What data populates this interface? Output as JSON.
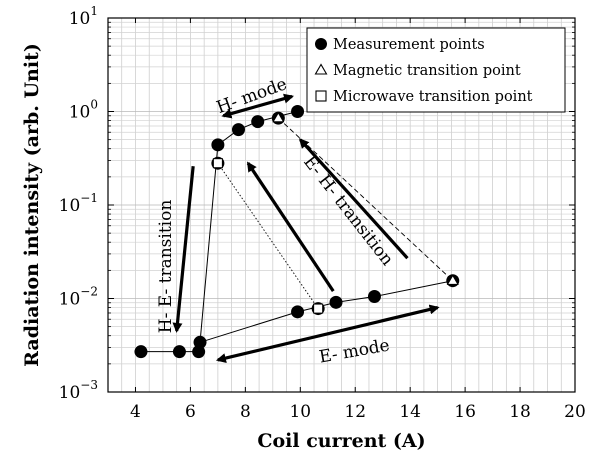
{
  "chart_data": {
    "type": "scatter",
    "xlabel": "Coil current (A)",
    "ylabel": "Radiation intensity (arb. Unit)",
    "xlim": [
      3,
      20
    ],
    "ylim": [
      0.001,
      10
    ],
    "yscale": "log",
    "x_ticks": [
      4,
      6,
      8,
      10,
      12,
      14,
      16,
      18,
      20
    ],
    "y_ticks": [
      {
        "value": 0.001,
        "base": "10",
        "exp": "−3"
      },
      {
        "value": 0.01,
        "base": "10",
        "exp": "−2"
      },
      {
        "value": 0.1,
        "base": "10",
        "exp": "−1"
      },
      {
        "value": 1,
        "base": "10",
        "exp": "0"
      },
      {
        "value": 10,
        "base": "10",
        "exp": "1"
      }
    ],
    "grid": true,
    "legend_position": "top-right",
    "series": [
      {
        "name": "Measurement points",
        "marker": "filled-circle",
        "segments": [
          {
            "x": [
              4.2,
              5.6,
              6.3,
              6.35,
              7.0,
              7.75,
              8.45,
              9.9
            ],
            "y": [
              0.0027,
              0.0027,
              0.0027,
              0.0034,
              0.44,
              0.64,
              0.78,
              1.0
            ]
          },
          {
            "x": [
              6.35,
              9.9,
              11.3,
              12.7,
              15.55
            ],
            "y": [
              0.0034,
              0.0072,
              0.0091,
              0.0105,
              0.0155
            ]
          }
        ],
        "points": {
          "x": [
            4.2,
            5.6,
            6.3,
            6.35,
            7.0,
            7.75,
            8.45,
            9.9,
            9.9,
            11.3,
            12.7
          ],
          "y": [
            0.0027,
            0.0027,
            0.0027,
            0.0034,
            0.44,
            0.64,
            0.78,
            1.0,
            0.0072,
            0.0091,
            0.0105
          ]
        }
      },
      {
        "name": "Magnetic transition point",
        "marker": "open-triangle",
        "points": {
          "x": [
            9.2,
            15.55
          ],
          "y": [
            0.85,
            0.0155
          ]
        },
        "connector": "dashed"
      },
      {
        "name": "Microwave transition point",
        "marker": "open-square",
        "points": {
          "x": [
            7.0,
            10.65
          ],
          "y": [
            0.28,
            0.0078
          ]
        },
        "connector": "dotted"
      }
    ],
    "annotations": [
      {
        "text": "H- mode",
        "x": 8.3,
        "y": 1.3,
        "angle": -20
      },
      {
        "text": "E- mode",
        "x": 12.0,
        "y": 0.0024,
        "angle": -10
      },
      {
        "text": "E- H- transition",
        "x": 11.6,
        "y": 0.08,
        "angle": 52
      },
      {
        "text": "H- E- transition",
        "x": 5.3,
        "y": 0.022,
        "angle": -90
      }
    ],
    "arrows": [
      {
        "kind": "double",
        "from": [
          7.2,
          0.9
        ],
        "to": [
          9.7,
          1.45
        ]
      },
      {
        "kind": "double",
        "from": [
          7.0,
          0.0022
        ],
        "to": [
          15.0,
          0.008
        ]
      },
      {
        "kind": "single",
        "from": [
          6.1,
          0.26
        ],
        "to": [
          5.5,
          0.0045
        ]
      },
      {
        "kind": "single",
        "from": [
          11.2,
          0.012
        ],
        "to": [
          8.1,
          0.28
        ]
      },
      {
        "kind": "single",
        "from": [
          13.9,
          0.027
        ],
        "to": [
          10.0,
          0.5
        ]
      }
    ]
  }
}
